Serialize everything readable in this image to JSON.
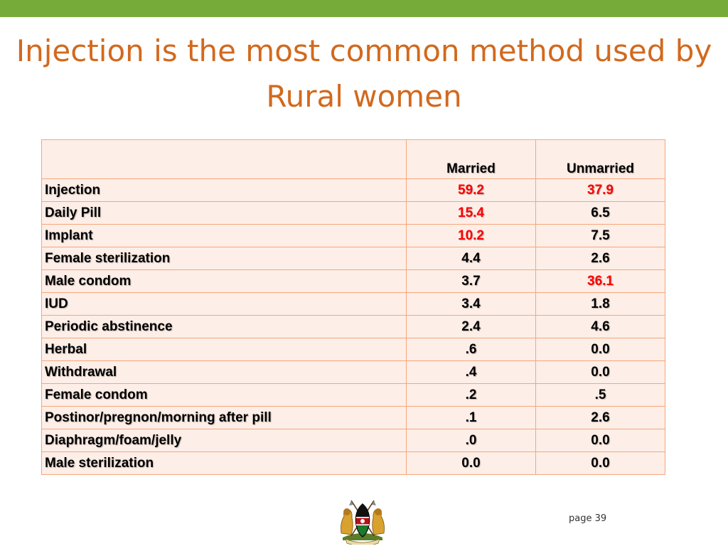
{
  "colors": {
    "top_bar": "#76ab3a",
    "title": "#d2691e",
    "highlight": "#ff0000"
  },
  "title": "Injection is the most common method used by Rural women",
  "table": {
    "headers": [
      "",
      "Married",
      "Unmarried"
    ],
    "rows": [
      {
        "method": "Injection",
        "married": "59.2",
        "unmarried": "37.9",
        "married_highlight": true,
        "unmarried_highlight": true
      },
      {
        "method": "Daily Pill",
        "married": "15.4",
        "unmarried": "6.5",
        "married_highlight": true,
        "unmarried_highlight": false
      },
      {
        "method": "Implant",
        "married": "10.2",
        "unmarried": "7.5",
        "married_highlight": true,
        "unmarried_highlight": false
      },
      {
        "method": "Female sterilization",
        "married": "4.4",
        "unmarried": "2.6",
        "married_highlight": false,
        "unmarried_highlight": false
      },
      {
        "method": "Male condom",
        "married": "3.7",
        "unmarried": "36.1",
        "married_highlight": false,
        "unmarried_highlight": true
      },
      {
        "method": "IUD",
        "married": "3.4",
        "unmarried": "1.8",
        "married_highlight": false,
        "unmarried_highlight": false
      },
      {
        "method": "Periodic abstinence",
        "married": "2.4",
        "unmarried": "4.6",
        "married_highlight": false,
        "unmarried_highlight": false
      },
      {
        "method": "Herbal",
        "married": ".6",
        "unmarried": "0.0",
        "married_highlight": false,
        "unmarried_highlight": false
      },
      {
        "method": "Withdrawal",
        "married": ".4",
        "unmarried": "0.0",
        "married_highlight": false,
        "unmarried_highlight": false
      },
      {
        "method": "Female condom",
        "married": ".2",
        "unmarried": ".5",
        "married_highlight": false,
        "unmarried_highlight": false
      },
      {
        "method": "Postinor/pregnon/morning after pill",
        "married": ".1",
        "unmarried": "2.6",
        "married_highlight": false,
        "unmarried_highlight": false
      },
      {
        "method": "Diaphragm/foam/jelly",
        "married": ".0",
        "unmarried": "0.0",
        "married_highlight": false,
        "unmarried_highlight": false
      },
      {
        "method": "Male sterilization",
        "married": "0.0",
        "unmarried": "0.0",
        "married_highlight": false,
        "unmarried_highlight": false
      }
    ]
  },
  "emblem": {
    "icon": "kenya-coat-of-arms-icon"
  },
  "page_number": "page 39"
}
